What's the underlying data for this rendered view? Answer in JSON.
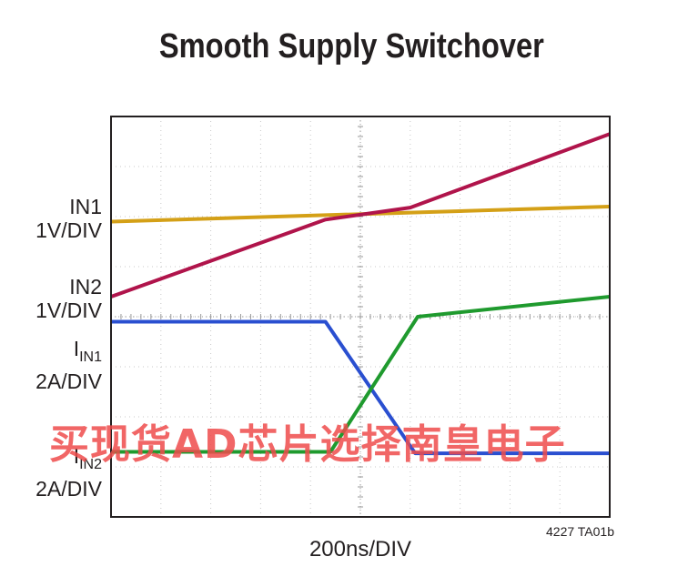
{
  "chart_data": {
    "type": "line",
    "title": "Smooth Supply Switchover",
    "xlabel": "200ns/DIV",
    "x_divisions": 10,
    "y_divisions": 8,
    "grid": true,
    "channel_labels": [
      {
        "name": "IN1",
        "scale": "1V/DIV"
      },
      {
        "name": "IN2",
        "scale": "1V/DIV"
      },
      {
        "name": "I",
        "sub": "IN1",
        "scale": "2A/DIV"
      },
      {
        "name": "I",
        "sub": "IN2",
        "scale": "2A/DIV"
      }
    ],
    "series": [
      {
        "id": "in1",
        "color": "#d4a017",
        "x": [
          0,
          10
        ],
        "y": [
          5.9,
          6.2
        ]
      },
      {
        "id": "in2",
        "color": "#b0144b",
        "x": [
          0,
          4.3,
          6.0,
          10
        ],
        "y": [
          4.4,
          5.94,
          6.18,
          7.65
        ]
      },
      {
        "id": "iin1",
        "color": "#2a4fd0",
        "x": [
          0,
          4.3,
          6.1,
          10
        ],
        "y": [
          3.9,
          3.9,
          1.27,
          1.27
        ]
      },
      {
        "id": "iin2",
        "color": "#1f9a2e",
        "x": [
          0,
          4.4,
          6.15,
          10
        ],
        "y": [
          1.3,
          1.3,
          4.0,
          4.4
        ]
      }
    ],
    "figure_code": "4227 TA01b"
  },
  "watermark": "买现货AD芯片选择南皇电子"
}
